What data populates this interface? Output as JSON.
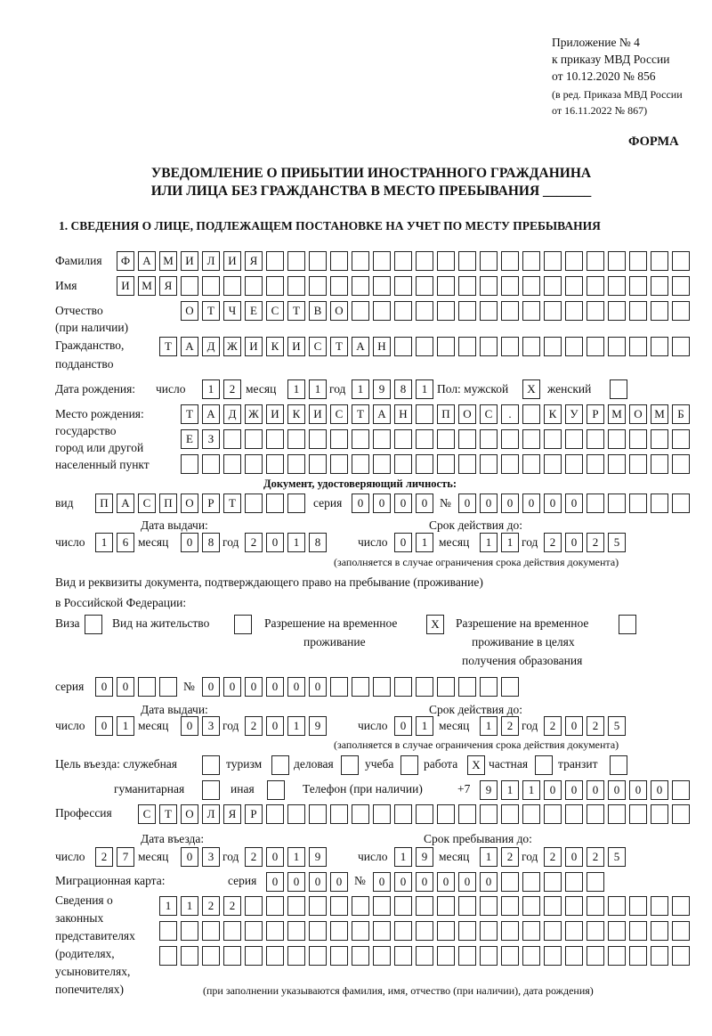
{
  "header": {
    "l1": "Приложение № 4",
    "l2": "к приказу МВД России",
    "l3": "от 10.12.2020 № 856",
    "l4": "(в ред. Приказа МВД России",
    "l5": "от 16.11.2022 № 867)",
    "forma": "ФОРМА"
  },
  "title": {
    "l1": "УВЕДОМЛЕНИЕ О ПРИБЫТИИ ИНОСТРАННОГО ГРАЖДАНИНА",
    "l2": "ИЛИ ЛИЦА БЕЗ ГРАЖДАНСТВА В МЕСТО ПРЕБЫВАНИЯ _______"
  },
  "section1": "1. СВЕДЕНИЯ О ЛИЦЕ, ПОДЛЕЖАЩЕМ ПОСТАНОВКЕ НА УЧЕТ ПО МЕСТУ ПРЕБЫВАНИЯ",
  "labels": {
    "surname": "Фамилия",
    "name": "Имя",
    "patronymic": "Отчество",
    "patronymic2": "(при наличии)",
    "citizenship": "Гражданство,",
    "citizenship2": "подданство",
    "birth_date": "Дата рождения:",
    "day": "число",
    "month": "месяц",
    "year": "год",
    "sex": "Пол: мужской",
    "female": "женский",
    "birth_place1": "Место рождения:",
    "birth_place2": "государство",
    "birth_place3": "город или другой",
    "birth_place4": "населенный пункт",
    "id_doc": "Документ, удостоверяющий личность:",
    "kind": "вид",
    "series": "серия",
    "number": "№",
    "issue_date": "Дата выдачи:",
    "valid_until": "Срок действия до:",
    "valid_note": "(заполняется в случае ограничения срока действия документа)",
    "stay_doc1": "Вид и реквизиты документа, подтверждающего право на пребывание (проживание)",
    "stay_doc2": "в Российской Федерации:",
    "visa": "Виза",
    "residence": "Вид на жительство",
    "trp1": "Разрешение на временное",
    "trp2": "проживание",
    "trp_edu1": "Разрешение на временное",
    "trp_edu2": "проживание в целях",
    "trp_edu3": "получения образования",
    "purpose": "Цель въезда: служебная",
    "tourism": "туризм",
    "business": "деловая",
    "study": "учеба",
    "work": "работа",
    "private": "частная",
    "transit": "транзит",
    "humanitarian": "гуманитарная",
    "other": "иная",
    "phone": "Телефон (при наличии)",
    "phone_prefix": "+7",
    "profession": "Профессия",
    "entry_date": "Дата въезда:",
    "stay_until": "Срок пребывания до:",
    "migration_card": "Миграционная карта:",
    "reps1": "Сведения о",
    "reps2": "законных",
    "reps3": "представителях",
    "reps4": "(родителях,",
    "reps5": "усыновителях,",
    "reps6": "попечителях)",
    "reps_note": "(при заполнении указываются фамилия, имя, отчество (при наличии), дата рождения)"
  },
  "fields": {
    "surname": [
      "Ф",
      "А",
      "М",
      "И",
      "Л",
      "И",
      "Я"
    ],
    "name": [
      "И",
      "М",
      "Я"
    ],
    "patronymic": [
      "О",
      "Т",
      "Ч",
      "Е",
      "С",
      "Т",
      "В",
      "О"
    ],
    "citizenship": [
      "Т",
      "А",
      "Д",
      "Ж",
      "И",
      "К",
      "И",
      "С",
      "Т",
      "А",
      "Н"
    ],
    "birth_day": [
      "1",
      "2"
    ],
    "birth_month": [
      "1",
      "1"
    ],
    "birth_year": [
      "1",
      "9",
      "8",
      "1"
    ],
    "sex_male": [
      "X"
    ],
    "sex_female": [],
    "birth_place_1": [
      "Т",
      "А",
      "Д",
      "Ж",
      "И",
      "К",
      "И",
      "С",
      "Т",
      "А",
      "Н",
      "",
      "П",
      "О",
      "С",
      ".",
      "",
      "К",
      "У",
      "Р",
      "М",
      "О",
      "М",
      "Б"
    ],
    "birth_place_2": [
      "Е",
      "З"
    ],
    "birth_place_3": [],
    "doc_kind": [
      "П",
      "А",
      "С",
      "П",
      "О",
      "Р",
      "Т"
    ],
    "doc_series": [
      "0",
      "0",
      "0",
      "0"
    ],
    "doc_number": [
      "0",
      "0",
      "0",
      "0",
      "0",
      "0"
    ],
    "doc_issue_day": [
      "1",
      "6"
    ],
    "doc_issue_month": [
      "0",
      "8"
    ],
    "doc_issue_year": [
      "2",
      "0",
      "1",
      "8"
    ],
    "doc_valid_day": [
      "0",
      "1"
    ],
    "doc_valid_month": [
      "1",
      "1"
    ],
    "doc_valid_year": [
      "2",
      "0",
      "2",
      "5"
    ],
    "visa": [],
    "residence": [],
    "trp": [
      "X"
    ],
    "trp_edu": [],
    "stay_series": [
      "0",
      "0"
    ],
    "stay_number": [
      "0",
      "0",
      "0",
      "0",
      "0",
      "0"
    ],
    "stay_issue_day": [
      "0",
      "1"
    ],
    "stay_issue_month": [
      "0",
      "3"
    ],
    "stay_issue_year": [
      "2",
      "0",
      "1",
      "9"
    ],
    "stay_valid_day": [
      "0",
      "1"
    ],
    "stay_valid_month": [
      "1",
      "2"
    ],
    "stay_valid_year": [
      "2",
      "0",
      "2",
      "5"
    ],
    "p_service": [],
    "p_tourism": [],
    "p_business": [],
    "p_study": [],
    "p_work": [
      "X"
    ],
    "p_private": [],
    "p_transit": [],
    "p_humanitarian": [],
    "p_other": [],
    "phone": [
      "9",
      "1",
      "1",
      "0",
      "0",
      "0",
      "0",
      "0",
      "0"
    ],
    "profession": [
      "С",
      "Т",
      "О",
      "Л",
      "Я",
      "Р"
    ],
    "entry_day": [
      "2",
      "7"
    ],
    "entry_month": [
      "0",
      "3"
    ],
    "entry_year": [
      "2",
      "0",
      "1",
      "9"
    ],
    "stay_until_day": [
      "1",
      "9"
    ],
    "stay_until_month": [
      "1",
      "2"
    ],
    "stay_until_year": [
      "2",
      "0",
      "2",
      "5"
    ],
    "mc_series": [
      "0",
      "0",
      "0",
      "0"
    ],
    "mc_number": [
      "0",
      "0",
      "0",
      "0",
      "0",
      "0"
    ],
    "reps_1": [
      "1",
      "1",
      "2",
      "2"
    ],
    "reps_2": [],
    "reps_3": []
  }
}
